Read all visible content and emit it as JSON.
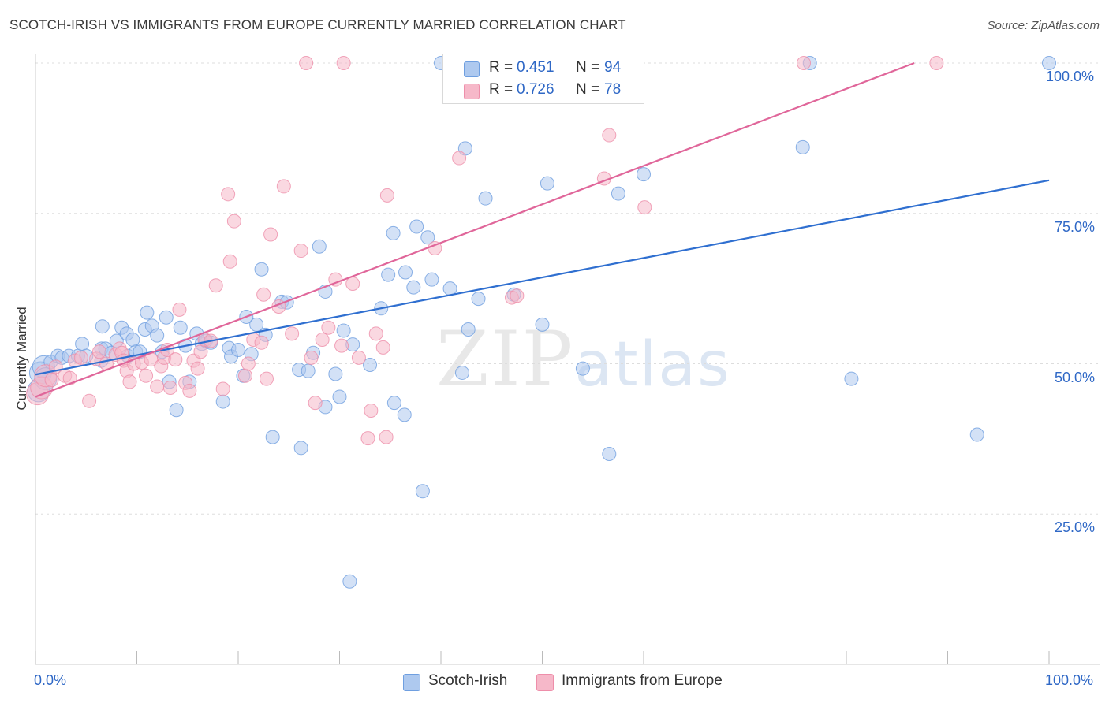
{
  "header": {
    "title": "SCOTCH-IRISH VS IMMIGRANTS FROM EUROPE CURRENTLY MARRIED CORRELATION CHART",
    "source": "Source: ZipAtlas.com"
  },
  "watermark": {
    "zip": "ZIP",
    "atlas": "atlas"
  },
  "legend": {
    "rows": [
      {
        "r_label": "R =",
        "r_value": "0.451",
        "n_label": "N =",
        "n_value": "94",
        "color": "#aec9ef"
      },
      {
        "r_label": "R =",
        "r_value": "0.726",
        "n_label": "N =",
        "n_value": "78",
        "color": "#f6b8c9"
      }
    ]
  },
  "bottom_legend": {
    "items": [
      {
        "label": "Scotch-Irish",
        "color": "#aec9ef"
      },
      {
        "label": "Immigrants from Europe",
        "color": "#f6b8c9"
      }
    ]
  },
  "chart_data": {
    "type": "scatter",
    "title": "SCOTCH-IRISH VS IMMIGRANTS FROM EUROPE CURRENTLY MARRIED CORRELATION CHART",
    "xlabel": "",
    "ylabel": "Currently Married",
    "xlim": [
      0,
      100
    ],
    "ylim": [
      0,
      100
    ],
    "x_tick_labels": [
      "0.0%",
      "100.0%"
    ],
    "y_tick_labels": [
      "25.0%",
      "50.0%",
      "75.0%",
      "100.0%"
    ],
    "y_ticks": [
      25,
      50,
      75,
      100
    ],
    "grid": true,
    "legend_position": "top-center",
    "series": [
      {
        "name": "Scotch-Irish",
        "color": "#6f9fe0",
        "fill": "#aec9ef",
        "trend": {
          "x0": 0,
          "y0": 48.2,
          "x1": 100,
          "y1": 80.5,
          "color": "#2f6fd0"
        },
        "points": [
          [
            0.3,
            45.5
          ],
          [
            0.5,
            48.5
          ],
          [
            0.8,
            49.5
          ],
          [
            1.0,
            47.5
          ],
          [
            1.5,
            50.3
          ],
          [
            2.2,
            51.3
          ],
          [
            2.6,
            51.0
          ],
          [
            3.3,
            51.3
          ],
          [
            4.2,
            51.3
          ],
          [
            4.6,
            53.3
          ],
          [
            5.0,
            51.3
          ],
          [
            6.5,
            50.5
          ],
          [
            6.5,
            52.5
          ],
          [
            6.9,
            52.5
          ],
          [
            7.5,
            51.8
          ],
          [
            9.1,
            51.3
          ],
          [
            6.6,
            56.2
          ],
          [
            8.0,
            53.8
          ],
          [
            8.5,
            56.0
          ],
          [
            9.0,
            55.0
          ],
          [
            9.6,
            54.0
          ],
          [
            9.9,
            52.0
          ],
          [
            10.3,
            52.0
          ],
          [
            10.8,
            55.7
          ],
          [
            11.0,
            58.5
          ],
          [
            11.5,
            56.3
          ],
          [
            12.0,
            54.7
          ],
          [
            12.5,
            52.0
          ],
          [
            12.9,
            57.7
          ],
          [
            13.2,
            47.0
          ],
          [
            13.9,
            42.3
          ],
          [
            14.3,
            56.0
          ],
          [
            14.8,
            53.0
          ],
          [
            15.2,
            47.0
          ],
          [
            15.9,
            55.0
          ],
          [
            16.4,
            53.3
          ],
          [
            16.8,
            53.8
          ],
          [
            17.3,
            53.5
          ],
          [
            18.5,
            43.7
          ],
          [
            19.1,
            52.6
          ],
          [
            19.3,
            51.2
          ],
          [
            20.0,
            52.3
          ],
          [
            20.5,
            48.0
          ],
          [
            20.8,
            57.8
          ],
          [
            21.3,
            51.6
          ],
          [
            21.8,
            56.5
          ],
          [
            22.3,
            65.7
          ],
          [
            22.7,
            54.8
          ],
          [
            23.4,
            37.8
          ],
          [
            24.3,
            60.3
          ],
          [
            24.8,
            60.2
          ],
          [
            26.0,
            49.0
          ],
          [
            26.2,
            36.0
          ],
          [
            26.9,
            48.8
          ],
          [
            27.4,
            51.8
          ],
          [
            28.0,
            69.5
          ],
          [
            28.6,
            62.0
          ],
          [
            28.6,
            42.8
          ],
          [
            29.6,
            48.3
          ],
          [
            30.0,
            44.5
          ],
          [
            30.4,
            55.5
          ],
          [
            31.3,
            53.2
          ],
          [
            31.0,
            13.8
          ],
          [
            33.0,
            49.8
          ],
          [
            34.1,
            59.2
          ],
          [
            34.8,
            64.8
          ],
          [
            35.3,
            71.7
          ],
          [
            35.4,
            43.5
          ],
          [
            36.4,
            41.5
          ],
          [
            36.5,
            65.2
          ],
          [
            37.3,
            62.7
          ],
          [
            37.6,
            72.8
          ],
          [
            38.2,
            28.8
          ],
          [
            38.7,
            71.0
          ],
          [
            39.1,
            64.0
          ],
          [
            40.0,
            100.0
          ],
          [
            40.9,
            62.5
          ],
          [
            42.1,
            48.5
          ],
          [
            42.4,
            85.8
          ],
          [
            42.7,
            55.7
          ],
          [
            43.7,
            60.8
          ],
          [
            44.4,
            77.5
          ],
          [
            47.2,
            61.5
          ],
          [
            50.0,
            56.5
          ],
          [
            50.5,
            80.0
          ],
          [
            54.0,
            49.2
          ],
          [
            56.6,
            35.0
          ],
          [
            57.5,
            78.3
          ],
          [
            60.0,
            81.5
          ],
          [
            75.7,
            86.0
          ],
          [
            76.4,
            100.0
          ],
          [
            80.5,
            47.5
          ],
          [
            92.9,
            38.2
          ],
          [
            100.0,
            100.0
          ]
        ]
      },
      {
        "name": "Immigrants from Europe",
        "color": "#ee8eaa",
        "fill": "#f6b8c9",
        "trend": {
          "x0": 0,
          "y0": 44.5,
          "x1": 86.7,
          "y1": 100,
          "color": "#e0669a"
        },
        "points": [
          [
            0.2,
            45.0
          ],
          [
            0.6,
            46.0
          ],
          [
            1.0,
            48.0
          ],
          [
            1.6,
            47.3
          ],
          [
            2.0,
            49.5
          ],
          [
            2.9,
            48.0
          ],
          [
            3.4,
            47.6
          ],
          [
            3.9,
            50.5
          ],
          [
            4.5,
            51.0
          ],
          [
            5.3,
            43.8
          ],
          [
            6.0,
            50.8
          ],
          [
            6.3,
            52.0
          ],
          [
            7.0,
            50.0
          ],
          [
            7.9,
            51.5
          ],
          [
            8.3,
            52.5
          ],
          [
            8.5,
            51.8
          ],
          [
            8.7,
            50.5
          ],
          [
            9.0,
            48.8
          ],
          [
            9.3,
            47.0
          ],
          [
            9.7,
            50.0
          ],
          [
            10.5,
            50.2
          ],
          [
            10.9,
            48.0
          ],
          [
            11.4,
            50.7
          ],
          [
            12.0,
            46.2
          ],
          [
            12.4,
            49.6
          ],
          [
            12.7,
            51.0
          ],
          [
            13.0,
            52.3
          ],
          [
            13.3,
            46.0
          ],
          [
            13.8,
            50.7
          ],
          [
            14.2,
            59.0
          ],
          [
            14.8,
            46.8
          ],
          [
            15.2,
            45.5
          ],
          [
            15.6,
            50.5
          ],
          [
            16.0,
            49.2
          ],
          [
            16.3,
            52.0
          ],
          [
            16.7,
            54.0
          ],
          [
            17.3,
            53.8
          ],
          [
            17.8,
            63.0
          ],
          [
            18.5,
            45.8
          ],
          [
            19.0,
            78.2
          ],
          [
            19.2,
            67.0
          ],
          [
            19.6,
            73.7
          ],
          [
            20.7,
            48.0
          ],
          [
            21.0,
            50.0
          ],
          [
            21.5,
            54.0
          ],
          [
            22.3,
            53.5
          ],
          [
            22.5,
            61.5
          ],
          [
            22.8,
            47.5
          ],
          [
            23.2,
            71.5
          ],
          [
            24.0,
            59.5
          ],
          [
            24.5,
            79.5
          ],
          [
            25.3,
            55.0
          ],
          [
            26.2,
            68.8
          ],
          [
            26.7,
            100.0
          ],
          [
            27.2,
            51.0
          ],
          [
            27.6,
            43.5
          ],
          [
            28.3,
            54.0
          ],
          [
            28.9,
            56.0
          ],
          [
            29.6,
            64.0
          ],
          [
            30.2,
            53.0
          ],
          [
            30.4,
            100.0
          ],
          [
            31.3,
            63.3
          ],
          [
            31.9,
            51.0
          ],
          [
            32.8,
            37.6
          ],
          [
            33.1,
            42.2
          ],
          [
            33.6,
            55.0
          ],
          [
            34.3,
            52.7
          ],
          [
            34.6,
            37.8
          ],
          [
            34.7,
            78.0
          ],
          [
            39.4,
            69.2
          ],
          [
            41.8,
            84.2
          ],
          [
            47.0,
            61.0
          ],
          [
            47.5,
            61.3
          ],
          [
            56.1,
            80.8
          ],
          [
            56.6,
            88.0
          ],
          [
            60.1,
            76.0
          ],
          [
            75.8,
            100.0
          ],
          [
            88.9,
            100.0
          ]
        ]
      }
    ]
  }
}
